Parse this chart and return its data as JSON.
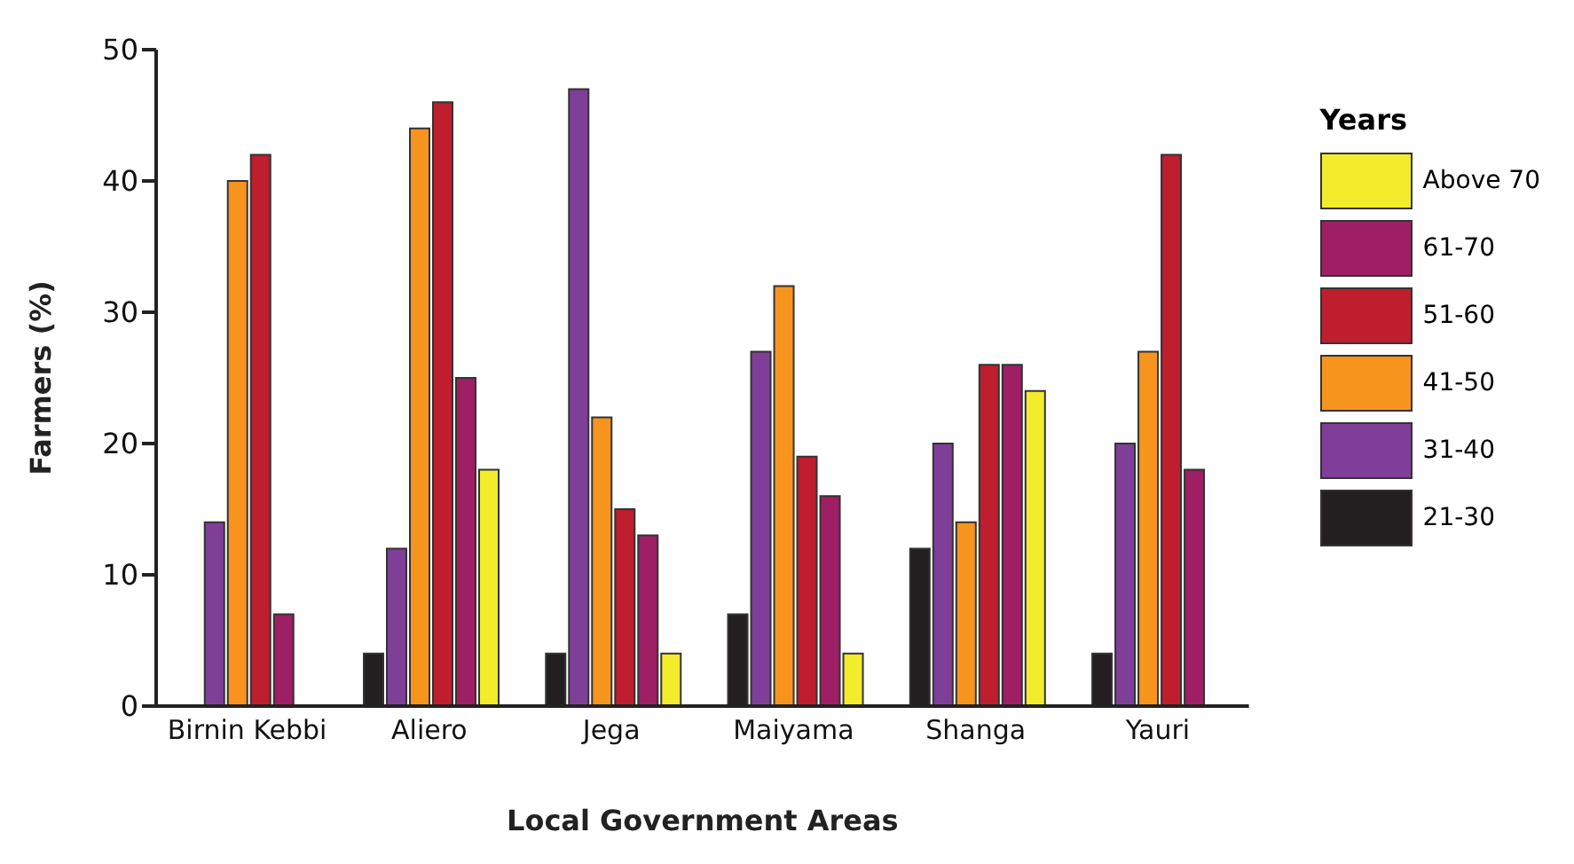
{
  "chart_data": {
    "type": "bar",
    "xlabel": "Local Government Areas",
    "ylabel": "Farmers (%)",
    "legend_title": "Years",
    "categories": [
      "Birnin Kebbi",
      "Aliero",
      "Jega",
      "Maiyama",
      "Shanga",
      "Yauri"
    ],
    "series": [
      {
        "name": "21-30",
        "color": "#231f20",
        "values": [
          null,
          4,
          4,
          7,
          12,
          4
        ]
      },
      {
        "name": "31-40",
        "color": "#7f3f98",
        "values": [
          14,
          12,
          47,
          27,
          20,
          20
        ]
      },
      {
        "name": "41-50",
        "color": "#f7941d",
        "values": [
          40,
          44,
          22,
          32,
          14,
          27
        ]
      },
      {
        "name": "51-60",
        "color": "#be1e2d",
        "values": [
          42,
          46,
          15,
          19,
          26,
          42
        ]
      },
      {
        "name": "61-70",
        "color": "#9e1f63",
        "values": [
          7,
          25,
          13,
          16,
          26,
          18
        ]
      },
      {
        "name": "Above 70",
        "color": "#f2ec2c",
        "values": [
          null,
          18,
          4,
          4,
          24,
          null
        ]
      }
    ],
    "ylim": [
      0,
      50
    ],
    "yticks": [
      0,
      10,
      20,
      30,
      40,
      50
    ],
    "grid": false,
    "legend": "right"
  }
}
